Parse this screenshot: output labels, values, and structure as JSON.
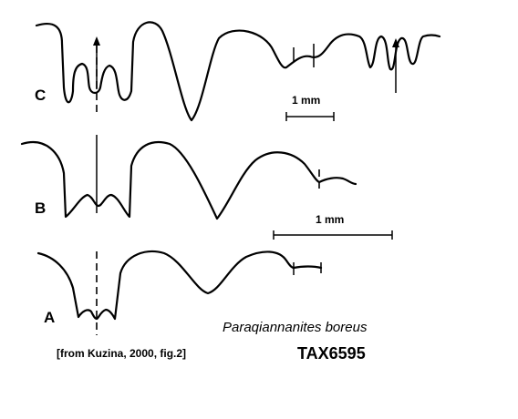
{
  "labels": {
    "c": "C",
    "b": "B",
    "a": "A"
  },
  "scale_bars": {
    "upper": "1 mm",
    "lower": "1 mm"
  },
  "species_name": "Paraqiannanites boreus",
  "citation": "[from Kuzina, 2000, fig.2]",
  "tax_id": "TAX6595"
}
